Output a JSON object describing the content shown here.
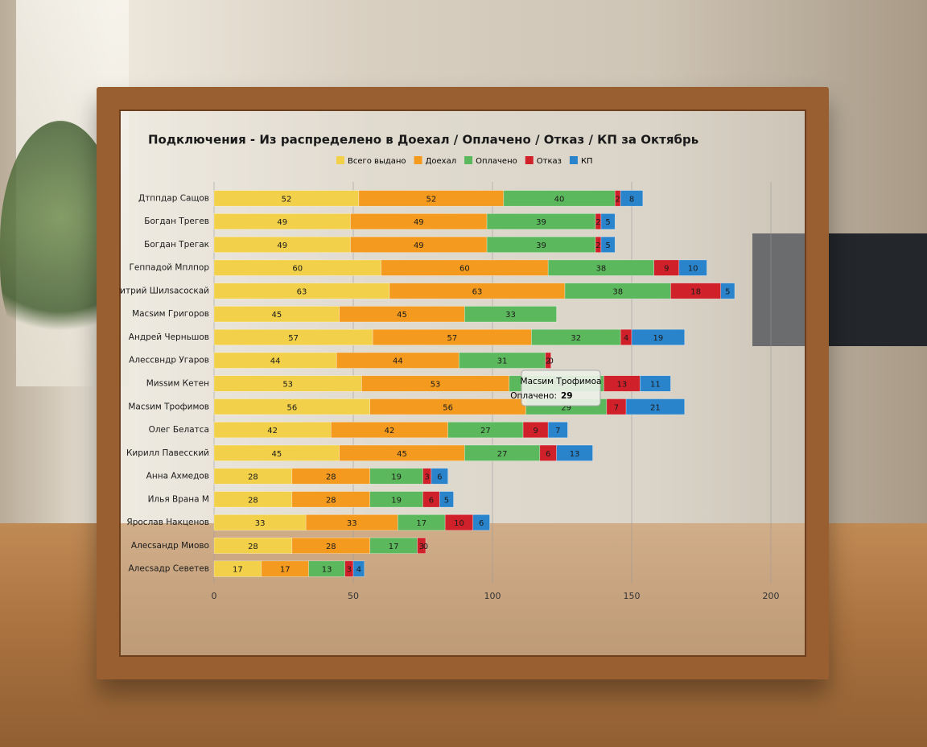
{
  "chart_data": {
    "type": "stacked-barh",
    "title": "Подключения - Из распределено в Доехал / Оплачено / Отказ / КП за Октябрь",
    "categories": [
      "Дтппдар Сащов",
      "Богдан Трегев",
      "Богдан Трегак",
      "Геппадой Мплпор",
      "Дтитрий Шилsacocкай",
      "Maсsим Григоров",
      "Андрей Черньшов",
      "Алессвндр Угаров",
      "Mиssим Кетен",
      "Масsим Трофимов",
      "Олег Белатса",
      "Кирилл Павесский",
      "Анна Ахмедов",
      "Илья Врана М",
      "Ярослав Накценов",
      "Алесsандр Миово",
      "Алесsaдр Севетев"
    ],
    "series": [
      {
        "name": "Всего выдано",
        "color": "#f2d04a",
        "values": [
          52,
          49,
          49,
          60,
          63,
          45,
          57,
          44,
          53,
          56,
          42,
          45,
          28,
          28,
          33,
          28,
          17
        ]
      },
      {
        "name": "Доехал",
        "color": "#f39a1f",
        "values": [
          52,
          49,
          49,
          60,
          63,
          45,
          57,
          44,
          53,
          56,
          42,
          45,
          28,
          28,
          33,
          28,
          17
        ]
      },
      {
        "name": "Оплачено",
        "color": "#5cb85c",
        "values": [
          40,
          39,
          39,
          38,
          38,
          33,
          32,
          31,
          34,
          29,
          27,
          27,
          19,
          19,
          17,
          17,
          13
        ]
      },
      {
        "name": "Отказ",
        "color": "#d0202a",
        "values": [
          2,
          2,
          2,
          9,
          18,
          null,
          4,
          2,
          13,
          7,
          9,
          6,
          3,
          6,
          10,
          3,
          3
        ]
      },
      {
        "name": "КП",
        "color": "#2a84cc",
        "values": [
          8,
          5,
          5,
          10,
          5,
          null,
          19,
          0,
          11,
          21,
          7,
          13,
          6,
          5,
          6,
          0,
          4
        ]
      }
    ],
    "xlim": [
      0,
      200
    ],
    "xticks": [
      0,
      50,
      100,
      150,
      200
    ],
    "grid": true,
    "legend": "top",
    "tooltip": {
      "title": "Масsим Трофимоа",
      "label": "Оплачено:",
      "value": 29
    }
  }
}
